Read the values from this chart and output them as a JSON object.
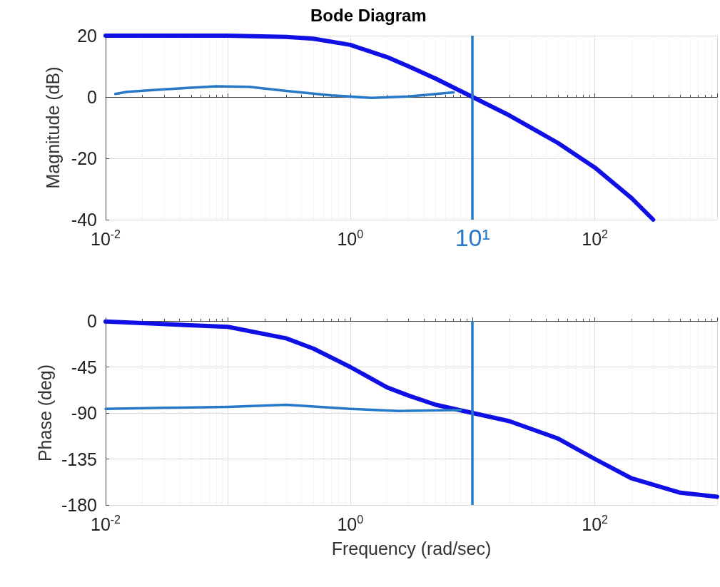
{
  "chart_data": [
    {
      "type": "line",
      "title": "Bode Diagram",
      "ylabel": "Magnitude (dB)",
      "xlim": [
        0.01,
        1000
      ],
      "xticks": [
        {
          "value": 0.01,
          "label": "10$^{-2}$"
        },
        {
          "value": 0.1,
          "label": null
        },
        {
          "value": 1,
          "label": "10$^{0}$"
        },
        {
          "value": 10,
          "label": null
        },
        {
          "value": 100,
          "label": "10$^{2}$"
        },
        {
          "value": 1000,
          "label": null
        }
      ],
      "ylim": [
        -40,
        20
      ],
      "yticks": [
        -40,
        -20,
        0,
        20
      ],
      "log": "x",
      "grid": true,
      "marker": "none",
      "series": [
        {
          "color": "#1010e6",
          "x": [
            0.01,
            0.1,
            0.3,
            0.5,
            1,
            2,
            3,
            5,
            10,
            20,
            50,
            100,
            200,
            300
          ],
          "values": [
            20,
            20,
            19.6,
            19,
            17,
            13,
            10,
            6,
            0,
            -6,
            -15,
            -23,
            -33,
            -40
          ]
        },
        {
          "color": "#2878c8",
          "x": [
            0.012,
            0.015,
            0.03,
            0.08,
            0.15,
            0.3,
            0.7,
            1.5,
            3,
            7
          ],
          "values": [
            1,
            1.7,
            2.5,
            3.5,
            3.3,
            2,
            0.5,
            -0.3,
            0.2,
            1.5
          ]
        }
      ],
      "ref_lines": [
        {
          "axis": "x",
          "value": 10,
          "label": "10¹",
          "color": "#2878c8"
        }
      ]
    },
    {
      "type": "line",
      "xlabel": "Frequency (rad/sec)",
      "ylabel": "Phase (deg)",
      "xlim": [
        0.01,
        1000
      ],
      "xticks": [
        {
          "value": 0.01,
          "label": "10$^{-2}$"
        },
        {
          "value": 0.1,
          "label": null
        },
        {
          "value": 1,
          "label": "10$^{0}$"
        },
        {
          "value": 10,
          "label": null
        },
        {
          "value": 100,
          "label": "10$^{2}$"
        },
        {
          "value": 1000,
          "label": null
        }
      ],
      "ylim": [
        -180,
        0
      ],
      "yticks": [
        -180,
        -135,
        -90,
        -45,
        0
      ],
      "log": "x",
      "grid": true,
      "marker": "none",
      "series": [
        {
          "color": "#1010e6",
          "x": [
            0.01,
            0.1,
            0.3,
            0.5,
            1,
            2,
            3,
            5,
            10,
            20,
            50,
            100,
            200,
            500,
            1000
          ],
          "values": [
            -0.6,
            -5.8,
            -17,
            -27,
            -45,
            -65,
            -73,
            -82,
            -90,
            -98,
            -115,
            -135,
            -154,
            -168,
            -172
          ]
        },
        {
          "color": "#2878c8",
          "x": [
            0.01,
            0.03,
            0.1,
            0.3,
            1,
            2.5,
            8
          ],
          "values": [
            -86,
            -85,
            -84,
            -82,
            -86,
            -88,
            -87
          ]
        }
      ],
      "ref_lines": [
        {
          "axis": "x",
          "value": 10,
          "color": "#2878c8"
        }
      ]
    }
  ]
}
